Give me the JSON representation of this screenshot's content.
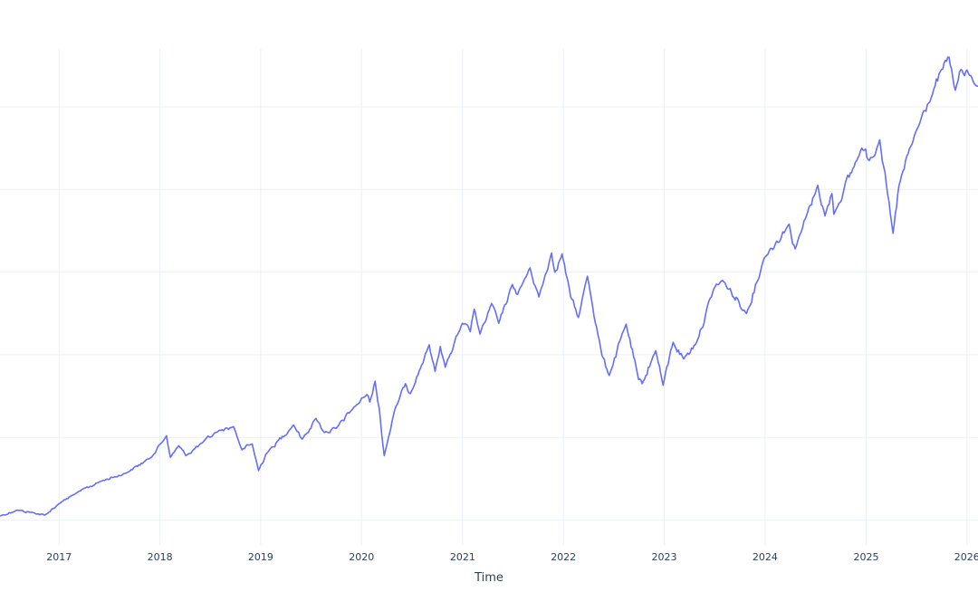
{
  "chart_data": {
    "type": "line",
    "title": "",
    "xlabel": "Time",
    "ylabel": "",
    "grid": true,
    "legend": "none",
    "xlim": [
      "2016-06-01",
      "2026-02-10"
    ],
    "ylim": [
      -300,
      5700
    ],
    "ygrid": [
      0,
      1000,
      2000,
      3000,
      4000,
      5000,
      6000
    ],
    "xticks": [
      {
        "date": "2017-01-01",
        "label": "2017"
      },
      {
        "date": "2018-01-01",
        "label": "2018"
      },
      {
        "date": "2019-01-01",
        "label": "2019"
      },
      {
        "date": "2020-01-01",
        "label": "2020"
      },
      {
        "date": "2021-01-01",
        "label": "2021"
      },
      {
        "date": "2022-01-01",
        "label": "2022"
      },
      {
        "date": "2023-01-01",
        "label": "2023"
      },
      {
        "date": "2024-01-01",
        "label": "2024"
      },
      {
        "date": "2025-01-01",
        "label": "2025"
      },
      {
        "date": "2026-01-01",
        "label": "2026"
      }
    ],
    "series": [
      {
        "color": "#636efa",
        "points": [
          [
            "2016-06-01",
            50
          ],
          [
            "2016-08-01",
            120
          ],
          [
            "2016-10-01",
            90
          ],
          [
            "2016-11-10",
            60
          ],
          [
            "2017-01-01",
            200
          ],
          [
            "2017-03-01",
            320
          ],
          [
            "2017-06-01",
            470
          ],
          [
            "2017-09-01",
            570
          ],
          [
            "2017-12-01",
            760
          ],
          [
            "2018-01-25",
            1020
          ],
          [
            "2018-02-08",
            760
          ],
          [
            "2018-03-10",
            900
          ],
          [
            "2018-04-05",
            780
          ],
          [
            "2018-06-01",
            930
          ],
          [
            "2018-08-01",
            1080
          ],
          [
            "2018-09-25",
            1130
          ],
          [
            "2018-10-25",
            850
          ],
          [
            "2018-12-01",
            920
          ],
          [
            "2018-12-24",
            600
          ],
          [
            "2019-01-20",
            800
          ],
          [
            "2019-04-30",
            1150
          ],
          [
            "2019-05-31",
            980
          ],
          [
            "2019-07-20",
            1230
          ],
          [
            "2019-08-20",
            1060
          ],
          [
            "2019-10-01",
            1110
          ],
          [
            "2019-12-01",
            1350
          ],
          [
            "2020-01-20",
            1520
          ],
          [
            "2020-01-31",
            1430
          ],
          [
            "2020-02-19",
            1680
          ],
          [
            "2020-03-05",
            1350
          ],
          [
            "2020-03-23",
            780
          ],
          [
            "2020-04-30",
            1330
          ],
          [
            "2020-06-08",
            1650
          ],
          [
            "2020-06-26",
            1530
          ],
          [
            "2020-09-02",
            2120
          ],
          [
            "2020-09-23",
            1800
          ],
          [
            "2020-10-12",
            2100
          ],
          [
            "2020-10-30",
            1850
          ],
          [
            "2020-12-31",
            2380
          ],
          [
            "2021-01-29",
            2280
          ],
          [
            "2021-02-12",
            2550
          ],
          [
            "2021-03-05",
            2250
          ],
          [
            "2021-04-16",
            2620
          ],
          [
            "2021-05-12",
            2380
          ],
          [
            "2021-06-30",
            2850
          ],
          [
            "2021-07-19",
            2730
          ],
          [
            "2021-09-02",
            3050
          ],
          [
            "2021-10-04",
            2700
          ],
          [
            "2021-11-19",
            3230
          ],
          [
            "2021-12-01",
            3000
          ],
          [
            "2021-12-27",
            3220
          ],
          [
            "2022-01-27",
            2700
          ],
          [
            "2022-02-24",
            2450
          ],
          [
            "2022-03-29",
            2950
          ],
          [
            "2022-05-20",
            2000
          ],
          [
            "2022-06-16",
            1750
          ],
          [
            "2022-08-16",
            2370
          ],
          [
            "2022-09-30",
            1700
          ],
          [
            "2022-10-13",
            1650
          ],
          [
            "2022-12-01",
            2050
          ],
          [
            "2022-12-28",
            1630
          ],
          [
            "2023-02-02",
            2150
          ],
          [
            "2023-03-13",
            1950
          ],
          [
            "2023-04-28",
            2150
          ],
          [
            "2023-06-30",
            2800
          ],
          [
            "2023-07-31",
            2900
          ],
          [
            "2023-10-26",
            2500
          ],
          [
            "2023-12-29",
            3170
          ],
          [
            "2024-03-28",
            3580
          ],
          [
            "2024-04-19",
            3280
          ],
          [
            "2024-07-10",
            4050
          ],
          [
            "2024-08-05",
            3680
          ],
          [
            "2024-08-30",
            3950
          ],
          [
            "2024-09-06",
            3700
          ],
          [
            "2024-12-16",
            4500
          ],
          [
            "2025-01-13",
            4350
          ],
          [
            "2025-02-19",
            4600
          ],
          [
            "2025-04-08",
            3470
          ],
          [
            "2025-04-30",
            4050
          ],
          [
            "2025-06-30",
            4700
          ],
          [
            "2025-08-29",
            5150
          ],
          [
            "2025-10-01",
            5450
          ],
          [
            "2025-10-28",
            5600
          ],
          [
            "2025-11-20",
            5200
          ],
          [
            "2025-12-10",
            5450
          ],
          [
            "2026-01-10",
            5380
          ],
          [
            "2026-02-10",
            5250
          ]
        ]
      }
    ]
  }
}
